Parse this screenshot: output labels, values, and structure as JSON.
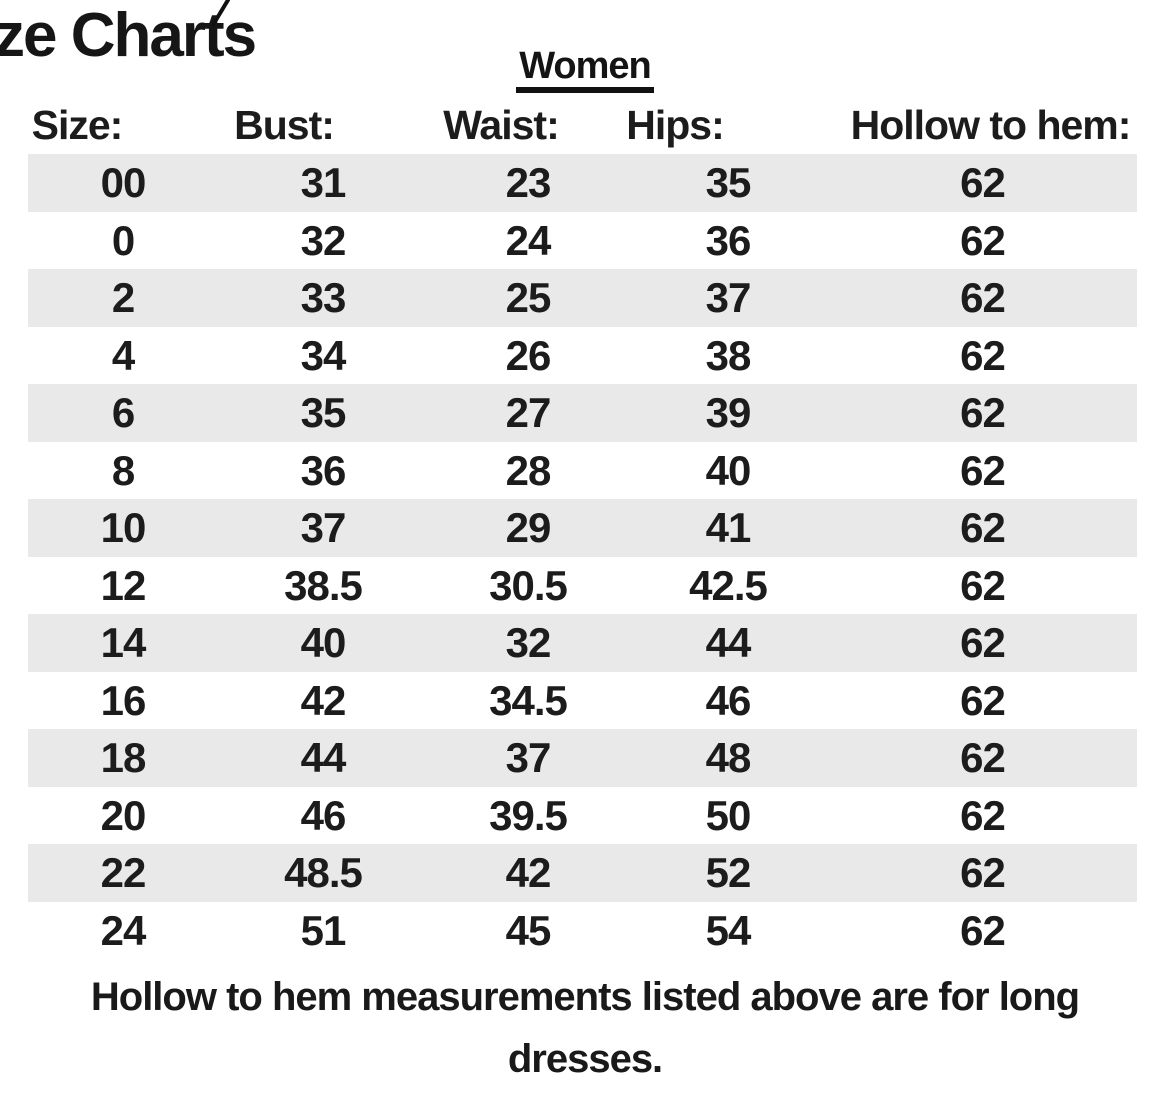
{
  "page": {
    "title_visible": "ze Charts",
    "group_heading": "Women",
    "footer_line1": "Hollow to hem measurements listed above are for long",
    "footer_line2": "dresses."
  },
  "table": {
    "columns": [
      "Size:",
      "Bust:",
      "Waist:",
      "Hips:",
      "Hollow to hem:"
    ],
    "rows": [
      [
        "00",
        "31",
        "23",
        "35",
        "62"
      ],
      [
        "0",
        "32",
        "24",
        "36",
        "62"
      ],
      [
        "2",
        "33",
        "25",
        "37",
        "62"
      ],
      [
        "4",
        "34",
        "26",
        "38",
        "62"
      ],
      [
        "6",
        "35",
        "27",
        "39",
        "62"
      ],
      [
        "8",
        "36",
        "28",
        "40",
        "62"
      ],
      [
        "10",
        "37",
        "29",
        "41",
        "62"
      ],
      [
        "12",
        "38.5",
        "30.5",
        "42.5",
        "62"
      ],
      [
        "14",
        "40",
        "32",
        "44",
        "62"
      ],
      [
        "16",
        "42",
        "34.5",
        "46",
        "62"
      ],
      [
        "18",
        "44",
        "37",
        "48",
        "62"
      ],
      [
        "20",
        "46",
        "39.5",
        "50",
        "62"
      ],
      [
        "22",
        "48.5",
        "42",
        "52",
        "62"
      ],
      [
        "24",
        "51",
        "45",
        "54",
        "62"
      ]
    ],
    "zebra_color": "#e9e9e9",
    "text_color": "#1c1c1c"
  },
  "decorations": {
    "pen_mark": "diagonal handwritten stroke above letter t"
  }
}
